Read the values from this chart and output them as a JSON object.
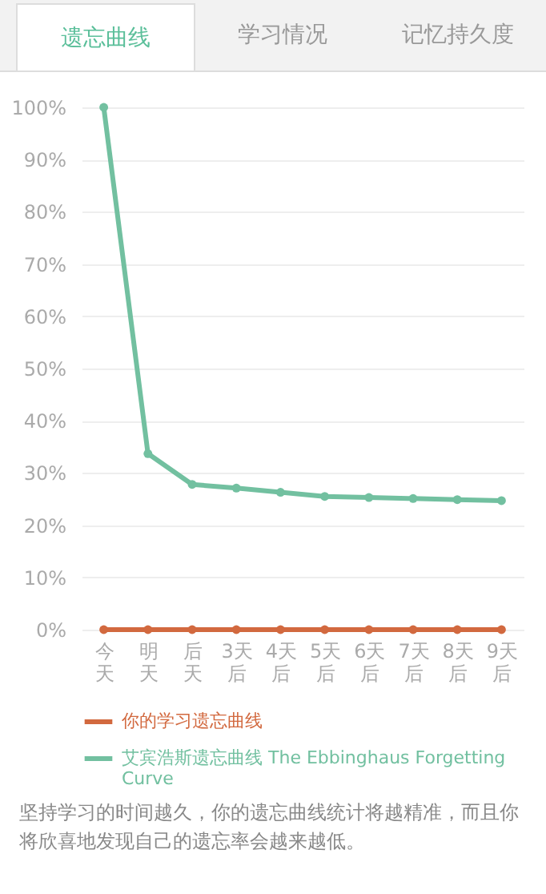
{
  "chart_data": {
    "type": "line",
    "title": "遗忘曲线",
    "annotations": [
      "学习情况",
      "记忆持久度",
      "坚持学习的时间越久，你的遗忘曲线统计将越精准，而且你将欣喜地发现自己的遗忘率会越来越低。"
    ],
    "categories": [
      "今天",
      "明天",
      "后天",
      "3天后",
      "4天后",
      "5天后",
      "6天后",
      "7天后",
      "8天后",
      "9天后"
    ],
    "series": [
      {
        "name": "你的学习遗忘曲线",
        "color": "#d2693f",
        "values": [
          0,
          0,
          0,
          0,
          0,
          0,
          0,
          0,
          0,
          0
        ]
      },
      {
        "name": "艾宾浩斯遗忘曲线 The Ebbinghaus Forgetting Curve",
        "color": "#72c0a0",
        "values": [
          100,
          33.7,
          27.8,
          27.1,
          26.3,
          25.5,
          25.3,
          25.1,
          24.9,
          24.7
        ]
      }
    ],
    "ylim": [
      0,
      100
    ],
    "yticks": [
      {
        "value": 0,
        "label": "0%"
      },
      {
        "value": 10,
        "label": "10%"
      },
      {
        "value": 20,
        "label": "20%"
      },
      {
        "value": 30,
        "label": "30%"
      },
      {
        "value": 40,
        "label": "40%"
      },
      {
        "value": 50,
        "label": "50%"
      },
      {
        "value": 60,
        "label": "60%"
      },
      {
        "value": 70,
        "label": "70%"
      },
      {
        "value": 80,
        "label": "80%"
      },
      {
        "value": 90,
        "label": "90%"
      },
      {
        "value": 100,
        "label": "100%"
      }
    ],
    "grid": "y",
    "legend": "bottom",
    "marker": "circle",
    "line_style": "solid"
  }
}
